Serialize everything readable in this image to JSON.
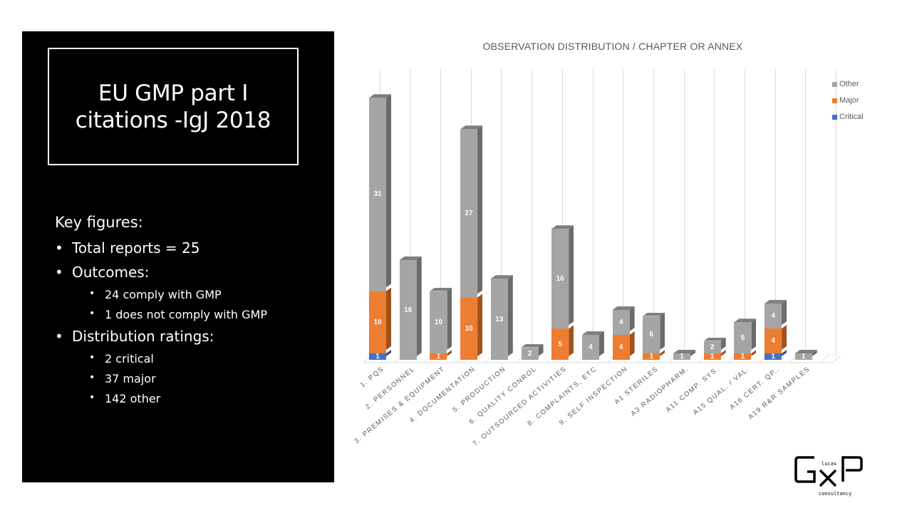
{
  "left_panel": {
    "title": "EU GMP part I\ncitations -IgJ 2018",
    "key_figures": {
      "heading": "Key figures:",
      "items": [
        {
          "label": "Total reports = 25",
          "sub": []
        },
        {
          "label": "Outcomes:",
          "sub": [
            "24 comply with GMP",
            "1 does not comply with GMP"
          ]
        },
        {
          "label": "Distribution ratings:",
          "sub": [
            "2 critical",
            "37 major",
            "142 other"
          ]
        }
      ]
    }
  },
  "logo": {
    "letters": "GXP",
    "top_text": "lucas",
    "bottom_text": "consultancy"
  },
  "colors": {
    "critical": "#4472c4",
    "major": "#ed7d31",
    "other": "#a5a5a5",
    "critical_side": "#2f528f",
    "major_side": "#a0521d",
    "other_side": "#6b6b6b",
    "other_top": "#7f7f7f"
  },
  "chart_data": {
    "type": "bar",
    "stacked": true,
    "style": "3d-column",
    "title": "OBSERVATION DISTRIBUTION / CHAPTER OR ANNEX",
    "xlabel": "",
    "ylabel": "",
    "grid": "vertical category gridlines",
    "legend_position": "right",
    "legend": [
      "Other",
      "Major",
      "Critical"
    ],
    "categories": [
      "1. PQS",
      "2. PERSONNEL",
      "3. PREMISES & EQUIPMENT",
      "4. DOCUMENTATION",
      "5. PRODUCTION",
      "6. QUALITY CONROL",
      "7. OUTSOURCED ACTIVITIES",
      "8. COMPLAINTS, ETC",
      "9. SELF INSPECTION",
      "A1 STERILES",
      "A3 RADIOPHARM.",
      "A11 COMP. SYS.",
      "A15 QUAL. / VAL.",
      "A16 CERT. QP..",
      "A19 R&R SAMPLES"
    ],
    "series": [
      {
        "name": "Critical",
        "color": "#4472c4",
        "values": [
          1,
          0,
          0,
          0,
          0,
          0,
          0,
          0,
          0,
          0,
          0,
          0,
          0,
          1,
          0
        ]
      },
      {
        "name": "Major",
        "color": "#ed7d31",
        "values": [
          10,
          0,
          1,
          10,
          0,
          0,
          5,
          0,
          4,
          1,
          0,
          1,
          1,
          4,
          0
        ]
      },
      {
        "name": "Other",
        "color": "#a5a5a5",
        "values": [
          31,
          16,
          10,
          27,
          13,
          2,
          16,
          4,
          4,
          6,
          1,
          2,
          5,
          4,
          1
        ]
      }
    ],
    "totals": {
      "Critical": 2,
      "Major": 37,
      "Other": 142
    }
  }
}
